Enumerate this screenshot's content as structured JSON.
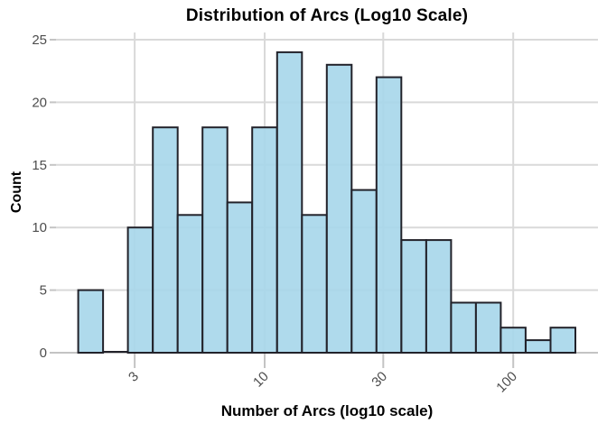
{
  "chart_data": {
    "type": "histogram",
    "title": "Distribution of Arcs (Log10 Scale)",
    "xlabel": "Number of Arcs (log10 scale)",
    "ylabel": "Count",
    "x_scale": "log10",
    "x_ticks": [
      3,
      10,
      30,
      100
    ],
    "y_ticks": [
      0,
      5,
      10,
      15,
      20,
      25
    ],
    "ylim": [
      0,
      25
    ],
    "grid": true,
    "legend": "none",
    "bins": {
      "log10_start": 0.25,
      "log10_width": 0.1,
      "counts": [
        5,
        0,
        10,
        18,
        11,
        18,
        12,
        18,
        24,
        11,
        23,
        13,
        22,
        9,
        9,
        4,
        4,
        2,
        1,
        2
      ]
    },
    "style": {
      "bar_fill": "#A6D6EA",
      "bar_stroke": "#22222A",
      "grid_color": "#D9D9D9",
      "axis_color": "#C4C4C4",
      "tick_label_color": "#4D4D4D",
      "text_color": "#000000",
      "background": "#FFFFFF"
    }
  }
}
